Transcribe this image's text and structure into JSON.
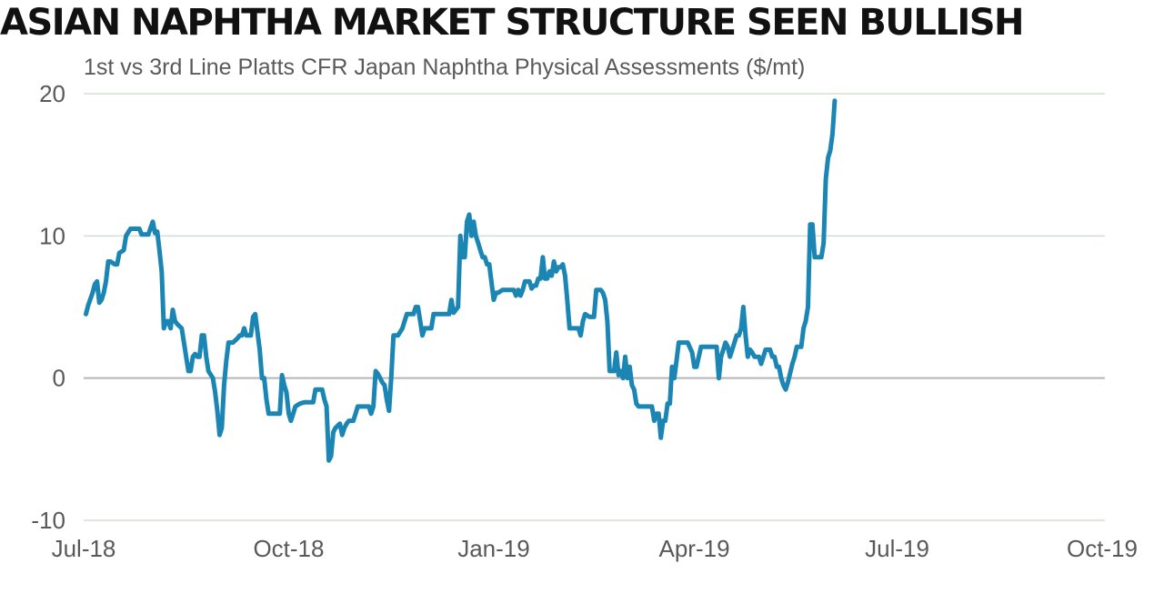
{
  "title": "ASIAN NAPHTHA MARKET STRUCTURE SEEN BULLISH",
  "subtitle": "1st vs 3rd Line Platts CFR Japan Naphtha Physical Assessments ($/mt)",
  "colors": {
    "line": "#1b86b4",
    "grid": "#d4ddd4",
    "zero_line": "#b5b5b5",
    "tick_text": "#595959"
  },
  "chart_data": {
    "type": "line",
    "title": "ASIAN NAPHTHA MARKET STRUCTURE SEEN BULLISH",
    "subtitle": "1st vs 3rd Line Platts CFR Japan Naphtha Physical Assessments ($/mt)",
    "xlabel": "",
    "ylabel": "",
    "ylim": [
      -10,
      20
    ],
    "yticks": [
      -10,
      0,
      10,
      20
    ],
    "ytick_labels": [
      "-10",
      "0",
      "10",
      "20"
    ],
    "xlim": [
      "2018-07-01",
      "2019-10-01"
    ],
    "xticks": [
      "2018-07-01",
      "2018-10-01",
      "2019-01-01",
      "2019-04-01",
      "2019-07-01",
      "2019-10-01"
    ],
    "xtick_labels": [
      "Jul-18",
      "Oct-18",
      "Jan-19",
      "Apr-19",
      "Jul-19",
      "Oct-19"
    ],
    "grid": "horizontal",
    "legend": "none",
    "series": [
      {
        "values": [
          [
            "2018-07-02",
            4.5
          ],
          [
            "2018-07-03",
            5.1
          ],
          [
            "2018-07-05",
            6.0
          ],
          [
            "2018-07-06",
            6.6
          ],
          [
            "2018-07-07",
            6.8
          ],
          [
            "2018-07-08",
            5.3
          ],
          [
            "2018-07-09",
            5.5
          ],
          [
            "2018-07-10",
            6.0
          ],
          [
            "2018-07-11",
            6.8
          ],
          [
            "2018-07-12",
            8.2
          ],
          [
            "2018-07-13",
            8.2
          ],
          [
            "2018-07-15",
            8.0
          ],
          [
            "2018-07-16",
            8.0
          ],
          [
            "2018-07-17",
            8.8
          ],
          [
            "2018-07-19",
            9.0
          ],
          [
            "2018-07-20",
            10.0
          ],
          [
            "2018-07-22",
            10.5
          ],
          [
            "2018-07-23",
            10.5
          ],
          [
            "2018-07-26",
            10.5
          ],
          [
            "2018-07-27",
            10.1
          ],
          [
            "2018-07-30",
            10.1
          ],
          [
            "2018-08-01",
            11.0
          ],
          [
            "2018-08-02",
            10.2
          ],
          [
            "2018-08-03",
            10.3
          ],
          [
            "2018-08-04",
            9.0
          ],
          [
            "2018-08-05",
            7.5
          ],
          [
            "2018-08-06",
            3.5
          ],
          [
            "2018-08-07",
            4.0
          ],
          [
            "2018-08-08",
            4.0
          ],
          [
            "2018-08-09",
            3.5
          ],
          [
            "2018-08-10",
            4.8
          ],
          [
            "2018-08-11",
            4.0
          ],
          [
            "2018-08-12",
            3.8
          ],
          [
            "2018-08-14",
            3.5
          ],
          [
            "2018-08-15",
            2.5
          ],
          [
            "2018-08-16",
            1.5
          ],
          [
            "2018-08-17",
            0.5
          ],
          [
            "2018-08-18",
            0.5
          ],
          [
            "2018-08-19",
            1.5
          ],
          [
            "2018-08-20",
            1.7
          ],
          [
            "2018-08-21",
            1.5
          ],
          [
            "2018-08-22",
            1.5
          ],
          [
            "2018-08-23",
            3.0
          ],
          [
            "2018-08-24",
            3.0
          ],
          [
            "2018-08-25",
            1.5
          ],
          [
            "2018-08-26",
            0.5
          ],
          [
            "2018-08-28",
            0.0
          ],
          [
            "2018-08-29",
            -1.0
          ],
          [
            "2018-08-30",
            -2.3
          ],
          [
            "2018-08-31",
            -4.0
          ],
          [
            "2018-09-01",
            -3.5
          ],
          [
            "2018-09-02",
            -0.5
          ],
          [
            "2018-09-03",
            1.2
          ],
          [
            "2018-09-04",
            2.5
          ],
          [
            "2018-09-06",
            2.5
          ],
          [
            "2018-09-08",
            2.8
          ],
          [
            "2018-09-09",
            3.0
          ],
          [
            "2018-09-10",
            3.0
          ],
          [
            "2018-09-11",
            3.5
          ],
          [
            "2018-09-12",
            3.0
          ],
          [
            "2018-09-14",
            3.0
          ],
          [
            "2018-09-15",
            4.3
          ],
          [
            "2018-09-16",
            4.5
          ],
          [
            "2018-09-17",
            3.2
          ],
          [
            "2018-09-18",
            2.0
          ],
          [
            "2018-09-19",
            0.0
          ],
          [
            "2018-09-20",
            0.0
          ],
          [
            "2018-09-21",
            -1.5
          ],
          [
            "2018-09-22",
            -2.5
          ],
          [
            "2018-09-25",
            -2.5
          ],
          [
            "2018-09-27",
            -2.5
          ],
          [
            "2018-09-28",
            0.2
          ],
          [
            "2018-09-29",
            -0.5
          ],
          [
            "2018-09-30",
            -1.0
          ],
          [
            "2018-10-01",
            -2.5
          ],
          [
            "2018-10-02",
            -3.0
          ],
          [
            "2018-10-03",
            -2.5
          ],
          [
            "2018-10-04",
            -2.0
          ],
          [
            "2018-10-06",
            -1.8
          ],
          [
            "2018-10-08",
            -1.7
          ],
          [
            "2018-10-10",
            -1.7
          ],
          [
            "2018-10-12",
            -1.7
          ],
          [
            "2018-10-13",
            -0.8
          ],
          [
            "2018-10-15",
            -0.8
          ],
          [
            "2018-10-16",
            -0.8
          ],
          [
            "2018-10-17",
            -1.5
          ],
          [
            "2018-10-18",
            -2.0
          ],
          [
            "2018-10-19",
            -5.8
          ],
          [
            "2018-10-20",
            -5.5
          ],
          [
            "2018-10-21",
            -3.8
          ],
          [
            "2018-10-22",
            -3.5
          ],
          [
            "2018-10-24",
            -3.2
          ],
          [
            "2018-10-25",
            -4.0
          ],
          [
            "2018-10-26",
            -3.5
          ],
          [
            "2018-10-27",
            -3.2
          ],
          [
            "2018-10-28",
            -3.0
          ],
          [
            "2018-10-30",
            -3.0
          ],
          [
            "2018-10-31",
            -2.5
          ],
          [
            "2018-11-01",
            -2.0
          ],
          [
            "2018-11-03",
            -2.0
          ],
          [
            "2018-11-05",
            -2.0
          ],
          [
            "2018-11-06",
            -2.0
          ],
          [
            "2018-11-07",
            -2.5
          ],
          [
            "2018-11-08",
            -2.0
          ],
          [
            "2018-11-09",
            0.5
          ],
          [
            "2018-11-10",
            0.3
          ],
          [
            "2018-11-11",
            0.0
          ],
          [
            "2018-11-12",
            -0.3
          ],
          [
            "2018-11-13",
            -0.5
          ],
          [
            "2018-11-14",
            -1.5
          ],
          [
            "2018-11-15",
            -2.3
          ],
          [
            "2018-11-16",
            0.0
          ],
          [
            "2018-11-17",
            3.0
          ],
          [
            "2018-11-18",
            3.0
          ],
          [
            "2018-11-19",
            3.0
          ],
          [
            "2018-11-21",
            3.5
          ],
          [
            "2018-11-22",
            4.0
          ],
          [
            "2018-11-23",
            4.5
          ],
          [
            "2018-11-25",
            4.5
          ],
          [
            "2018-11-26",
            4.5
          ],
          [
            "2018-11-27",
            5.0
          ],
          [
            "2018-11-28",
            5.0
          ],
          [
            "2018-11-29",
            4.0
          ],
          [
            "2018-11-30",
            3.0
          ],
          [
            "2018-12-01",
            3.5
          ],
          [
            "2018-12-02",
            3.5
          ],
          [
            "2018-12-04",
            3.5
          ],
          [
            "2018-12-05",
            4.5
          ],
          [
            "2018-12-07",
            4.5
          ],
          [
            "2018-12-09",
            4.5
          ],
          [
            "2018-12-11",
            4.5
          ],
          [
            "2018-12-12",
            4.5
          ],
          [
            "2018-12-13",
            5.5
          ],
          [
            "2018-12-14",
            4.6
          ],
          [
            "2018-12-16",
            5.0
          ],
          [
            "2018-12-17",
            10.0
          ],
          [
            "2018-12-18",
            8.5
          ],
          [
            "2018-12-19",
            8.5
          ],
          [
            "2018-12-20",
            11.0
          ],
          [
            "2018-12-21",
            11.5
          ],
          [
            "2018-12-22",
            10.0
          ],
          [
            "2018-12-23",
            11.0
          ],
          [
            "2018-12-24",
            10.0
          ],
          [
            "2018-12-25",
            9.5
          ],
          [
            "2018-12-26",
            9.0
          ],
          [
            "2018-12-27",
            8.5
          ],
          [
            "2018-12-28",
            8.5
          ],
          [
            "2018-12-29",
            8.0
          ],
          [
            "2018-12-30",
            8.0
          ],
          [
            "2019-01-01",
            5.5
          ],
          [
            "2019-01-02",
            6.0
          ],
          [
            "2019-01-03",
            6.0
          ],
          [
            "2019-01-05",
            6.2
          ],
          [
            "2019-01-08",
            6.2
          ],
          [
            "2019-01-10",
            6.2
          ],
          [
            "2019-01-11",
            5.8
          ],
          [
            "2019-01-12",
            6.2
          ],
          [
            "2019-01-13",
            5.8
          ],
          [
            "2019-01-14",
            6.2
          ],
          [
            "2019-01-15",
            6.8
          ],
          [
            "2019-01-17",
            6.8
          ],
          [
            "2019-01-18",
            6.3
          ],
          [
            "2019-01-19",
            6.5
          ],
          [
            "2019-01-20",
            6.5
          ],
          [
            "2019-01-21",
            7.0
          ],
          [
            "2019-01-22",
            7.0
          ],
          [
            "2019-01-23",
            8.5
          ],
          [
            "2019-01-24",
            7.0
          ],
          [
            "2019-01-25",
            7.0
          ],
          [
            "2019-01-26",
            7.5
          ],
          [
            "2019-01-27",
            7.2
          ],
          [
            "2019-01-28",
            8.2
          ],
          [
            "2019-01-29",
            7.5
          ],
          [
            "2019-01-30",
            7.8
          ],
          [
            "2019-01-31",
            7.8
          ],
          [
            "2019-02-01",
            8.0
          ],
          [
            "2019-02-02",
            7.2
          ],
          [
            "2019-02-03",
            5.5
          ],
          [
            "2019-02-04",
            3.5
          ],
          [
            "2019-02-06",
            3.5
          ],
          [
            "2019-02-08",
            3.5
          ],
          [
            "2019-02-09",
            3.0
          ],
          [
            "2019-02-10",
            4.0
          ],
          [
            "2019-02-11",
            4.5
          ],
          [
            "2019-02-13",
            4.3
          ],
          [
            "2019-02-15",
            4.3
          ],
          [
            "2019-02-16",
            6.2
          ],
          [
            "2019-02-18",
            6.2
          ],
          [
            "2019-02-19",
            6.0
          ],
          [
            "2019-02-20",
            5.5
          ],
          [
            "2019-02-21",
            4.0
          ],
          [
            "2019-02-22",
            0.5
          ],
          [
            "2019-02-23",
            0.5
          ],
          [
            "2019-02-24",
            0.5
          ],
          [
            "2019-02-25",
            1.8
          ],
          [
            "2019-02-26",
            0.2
          ],
          [
            "2019-02-27",
            0.5
          ],
          [
            "2019-02-28",
            0.0
          ],
          [
            "2019-03-01",
            1.5
          ],
          [
            "2019-03-02",
            0.0
          ],
          [
            "2019-03-03",
            0.8
          ],
          [
            "2019-03-04",
            -0.5
          ],
          [
            "2019-03-05",
            -0.8
          ],
          [
            "2019-03-06",
            -1.8
          ],
          [
            "2019-03-07",
            -2.0
          ],
          [
            "2019-03-09",
            -2.0
          ],
          [
            "2019-03-11",
            -2.0
          ],
          [
            "2019-03-13",
            -2.0
          ],
          [
            "2019-03-14",
            -3.0
          ],
          [
            "2019-03-15",
            -2.5
          ],
          [
            "2019-03-16",
            -2.5
          ],
          [
            "2019-03-17",
            -4.2
          ],
          [
            "2019-03-18",
            -3.0
          ],
          [
            "2019-03-19",
            -3.0
          ],
          [
            "2019-03-20",
            -1.8
          ],
          [
            "2019-03-21",
            -1.8
          ],
          [
            "2019-03-22",
            0.8
          ],
          [
            "2019-03-23",
            0.0
          ],
          [
            "2019-03-24",
            1.2
          ],
          [
            "2019-03-25",
            2.5
          ],
          [
            "2019-03-27",
            2.5
          ],
          [
            "2019-03-29",
            2.5
          ],
          [
            "2019-03-31",
            1.8
          ],
          [
            "2019-04-01",
            0.8
          ],
          [
            "2019-04-02",
            0.8
          ],
          [
            "2019-04-03",
            1.5
          ],
          [
            "2019-04-04",
            2.2
          ],
          [
            "2019-04-06",
            2.2
          ],
          [
            "2019-04-08",
            2.2
          ],
          [
            "2019-04-11",
            2.2
          ],
          [
            "2019-04-12",
            0.0
          ],
          [
            "2019-04-13",
            1.5
          ],
          [
            "2019-04-14",
            2.0
          ],
          [
            "2019-04-15",
            2.5
          ],
          [
            "2019-04-16",
            2.2
          ],
          [
            "2019-04-17",
            1.5
          ],
          [
            "2019-04-18",
            2.0
          ],
          [
            "2019-04-19",
            2.5
          ],
          [
            "2019-04-20",
            3.0
          ],
          [
            "2019-04-21",
            3.0
          ],
          [
            "2019-04-22",
            3.5
          ],
          [
            "2019-04-23",
            5.0
          ],
          [
            "2019-04-24",
            3.0
          ],
          [
            "2019-04-25",
            1.5
          ],
          [
            "2019-04-26",
            2.0
          ],
          [
            "2019-04-27",
            1.8
          ],
          [
            "2019-04-28",
            1.5
          ],
          [
            "2019-04-30",
            1.5
          ],
          [
            "2019-05-01",
            1.0
          ],
          [
            "2019-05-03",
            2.0
          ],
          [
            "2019-05-05",
            2.0
          ],
          [
            "2019-05-06",
            1.5
          ],
          [
            "2019-05-07",
            1.5
          ],
          [
            "2019-05-08",
            0.8
          ],
          [
            "2019-05-09",
            0.8
          ],
          [
            "2019-05-10",
            0.0
          ],
          [
            "2019-05-11",
            -0.5
          ],
          [
            "2019-05-12",
            -0.8
          ],
          [
            "2019-05-13",
            -0.3
          ],
          [
            "2019-05-15",
            1.0
          ],
          [
            "2019-05-16",
            1.5
          ],
          [
            "2019-05-17",
            2.2
          ],
          [
            "2019-05-19",
            2.2
          ],
          [
            "2019-05-20",
            3.5
          ],
          [
            "2019-05-21",
            4.0
          ],
          [
            "2019-05-22",
            5.0
          ],
          [
            "2019-05-23",
            10.8
          ],
          [
            "2019-05-24",
            10.8
          ],
          [
            "2019-05-25",
            8.5
          ],
          [
            "2019-05-27",
            8.5
          ],
          [
            "2019-05-28",
            8.5
          ],
          [
            "2019-05-29",
            9.5
          ],
          [
            "2019-05-30",
            14.0
          ],
          [
            "2019-05-31",
            15.5
          ],
          [
            "2019-06-01",
            16.0
          ],
          [
            "2019-06-02",
            17.2
          ],
          [
            "2019-06-03",
            19.5
          ]
        ]
      }
    ]
  }
}
